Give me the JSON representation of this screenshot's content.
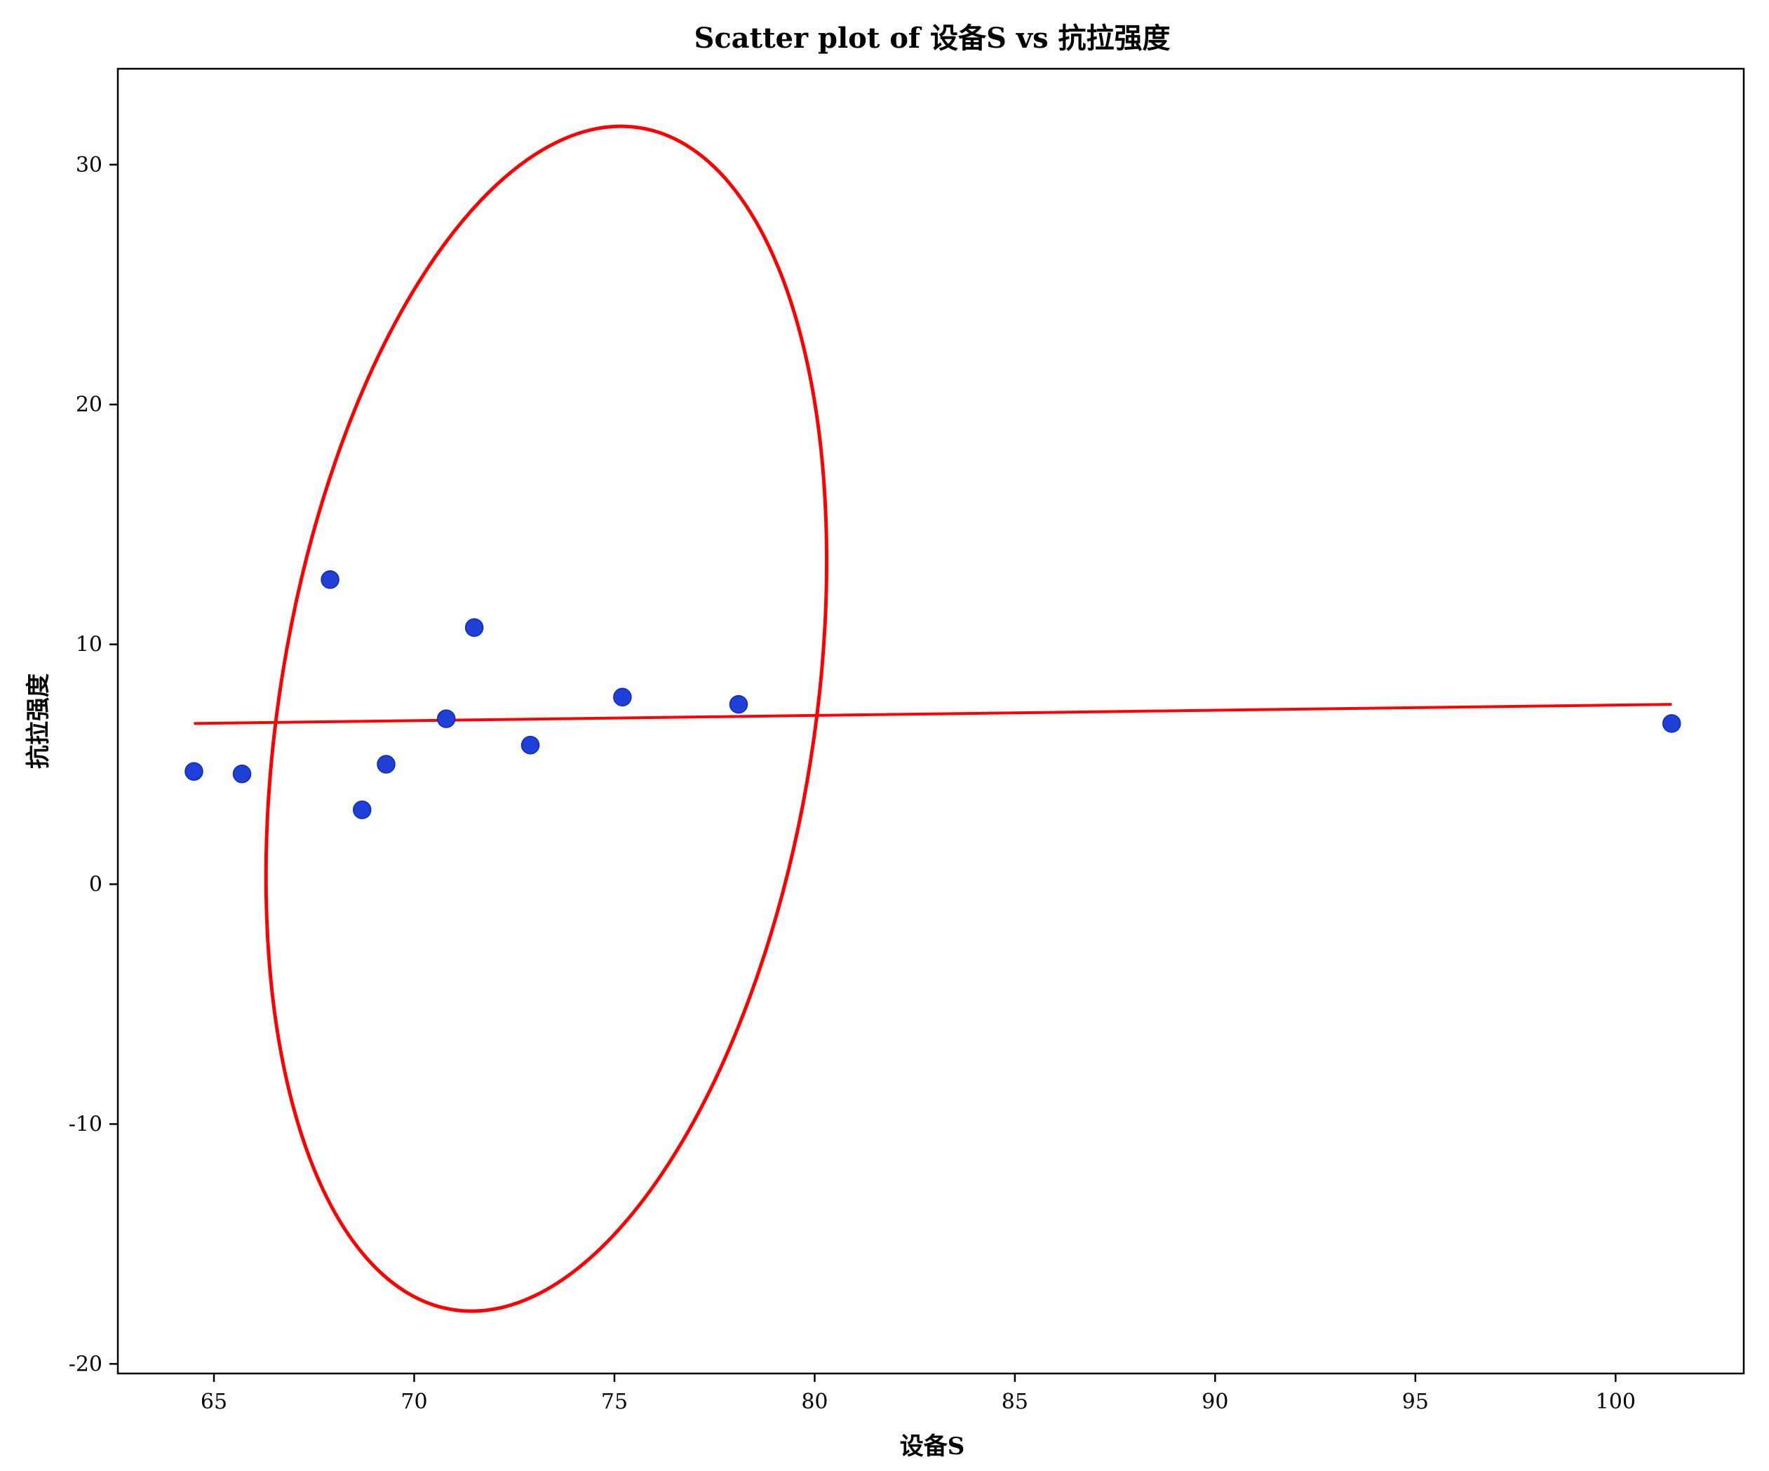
{
  "chart_data": {
    "type": "scatter",
    "title": "Scatter plot of 设备S vs 抗拉强度",
    "xlabel": "设备S",
    "ylabel": "抗拉强度",
    "xlim": [
      62.6,
      103.2
    ],
    "ylim": [
      -20.4,
      34.0
    ],
    "xticks": [
      65,
      70,
      75,
      80,
      85,
      90,
      95,
      100
    ],
    "yticks": [
      -20,
      -10,
      0,
      10,
      20,
      30
    ],
    "xtick_labels": [
      "65",
      "70",
      "75",
      "80",
      "85",
      "90",
      "95",
      "100"
    ],
    "ytick_labels": [
      "-20",
      "-10",
      "0",
      "10",
      "20",
      "30"
    ],
    "grid": false,
    "series": [
      {
        "kind": "points",
        "color": "#1f3fd6",
        "points": [
          {
            "x": 64.5,
            "y": 4.7
          },
          {
            "x": 65.7,
            "y": 4.6
          },
          {
            "x": 67.9,
            "y": 12.7
          },
          {
            "x": 68.7,
            "y": 3.1
          },
          {
            "x": 69.3,
            "y": 5.0
          },
          {
            "x": 70.8,
            "y": 6.9
          },
          {
            "x": 71.5,
            "y": 10.7
          },
          {
            "x": 72.9,
            "y": 5.8
          },
          {
            "x": 75.2,
            "y": 7.8
          },
          {
            "x": 78.1,
            "y": 7.5
          },
          {
            "x": 101.4,
            "y": 6.7
          }
        ]
      },
      {
        "kind": "regression-line",
        "color": "#ff0000",
        "x": [
          64.5,
          101.4
        ],
        "y": [
          6.7,
          7.5
        ]
      },
      {
        "kind": "confidence-ellipse",
        "color": "#ff0000",
        "center": {
          "x": 73.3,
          "y": 6.9
        },
        "x_extent": [
          66.3,
          80.3
        ],
        "y_extent": [
          -17.8,
          31.6
        ]
      }
    ]
  }
}
